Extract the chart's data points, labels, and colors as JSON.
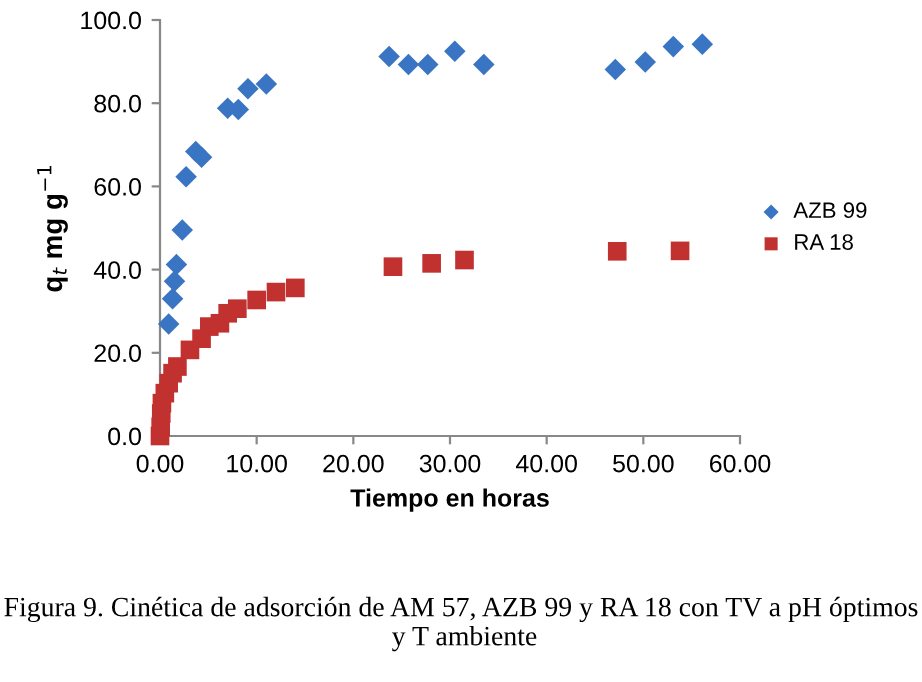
{
  "chart_data": {
    "type": "scatter",
    "xlabel": "Tiempo en horas",
    "ylabel": "q$_{t}$ mg g$^{−1}$",
    "xlim": [
      0,
      60
    ],
    "ylim": [
      0,
      100
    ],
    "xticks": [
      {
        "value": 0,
        "label": "0.00"
      },
      {
        "value": 10,
        "label": "10.00"
      },
      {
        "value": 20,
        "label": "20.00"
      },
      {
        "value": 30,
        "label": "30.00"
      },
      {
        "value": 40,
        "label": "40.00"
      },
      {
        "value": 50,
        "label": "50.00"
      },
      {
        "value": 60,
        "label": "60.00"
      }
    ],
    "yticks": [
      {
        "value": 0,
        "label": "0.0"
      },
      {
        "value": 20,
        "label": "20.0"
      },
      {
        "value": 40,
        "label": "40.0"
      },
      {
        "value": 60,
        "label": "60.0"
      },
      {
        "value": 80,
        "label": "80.0"
      },
      {
        "value": 100,
        "label": "100.0"
      }
    ],
    "grid": false,
    "legend": "right",
    "series": [
      {
        "name": "AZB 99",
        "color": "#3a75c4",
        "marker": "diamond",
        "x": [
          0.9,
          1.3,
          1.5,
          1.7,
          2.3,
          2.7,
          3.7,
          4.3,
          7.0,
          8.1,
          9.1,
          11.0,
          23.7,
          25.7,
          27.7,
          30.5,
          33.5,
          47.1,
          50.2,
          53.1,
          56.1
        ],
        "values": [
          26.9,
          33.0,
          37.2,
          41.2,
          49.5,
          62.3,
          68.4,
          67.0,
          78.8,
          78.5,
          83.5,
          84.6,
          91.2,
          89.3,
          89.3,
          92.5,
          89.3,
          88.1,
          89.9,
          93.6,
          94.2
        ]
      },
      {
        "name": "RA 18",
        "color": "#c0312f",
        "marker": "square",
        "x": [
          0,
          0.07,
          0.13,
          0.2,
          0.5,
          0.9,
          1.3,
          1.8,
          3.1,
          4.3,
          5.1,
          6.2,
          7.0,
          8.0,
          10.0,
          12.0,
          14.0,
          24.1,
          28.1,
          31.5,
          47.3,
          53.8
        ],
        "values": [
          0,
          2.2,
          5.4,
          7.9,
          10.3,
          12.7,
          15.1,
          16.7,
          20.7,
          23.4,
          26.3,
          27.1,
          29.5,
          30.6,
          32.7,
          34.6,
          35.6,
          40.7,
          41.5,
          42.3,
          44.4,
          44.5
        ]
      }
    ],
    "annotations": [
      "Figura 9. Cinética de adsorción de AM 57, AZB 99 y RA 18 con TV a pH óptimos  y T ambiente"
    ]
  }
}
